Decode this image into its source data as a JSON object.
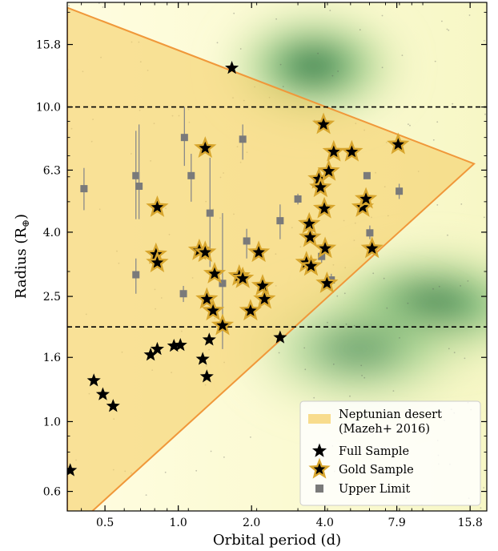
{
  "chart_data": {
    "type": "scatter",
    "xlabel": "Orbital period (d)",
    "ylabel": "Radius (R",
    "ylabel_sub": "⊕",
    "ylabel_close": ")",
    "xscale": "log",
    "yscale": "log",
    "xlim": [
      0.35,
      18.5
    ],
    "ylim": [
      0.52,
      21.5
    ],
    "xticks": [
      {
        "value": 0.5,
        "label": "0.5"
      },
      {
        "value": 1.0,
        "label": "1.0"
      },
      {
        "value": 2.0,
        "label": "2.0"
      },
      {
        "value": 4.0,
        "label": "4.0"
      },
      {
        "value": 7.9,
        "label": "7.9"
      },
      {
        "value": 15.8,
        "label": "15.8"
      }
    ],
    "yticks": [
      {
        "value": 0.6,
        "label": "0.6"
      },
      {
        "value": 1.0,
        "label": "1.0"
      },
      {
        "value": 1.6,
        "label": "1.6"
      },
      {
        "value": 2.5,
        "label": "2.5"
      },
      {
        "value": 4.0,
        "label": "4.0"
      },
      {
        "value": 6.3,
        "label": "6.3"
      },
      {
        "value": 10.0,
        "label": "10.0"
      },
      {
        "value": 15.8,
        "label": "15.8"
      }
    ],
    "hlines": [
      10.0,
      2.0
    ],
    "desert": {
      "name": "Neptunian desert\n(Mazeh+ 2016)",
      "color": "#f5d06a",
      "edge_color": "#f0983a",
      "polygon": [
        [
          0.35,
          20.7
        ],
        [
          16.4,
          6.6
        ],
        [
          0.42,
          0.5
        ],
        [
          0.35,
          0.5
        ]
      ]
    },
    "density_blobs": [
      {
        "x": 3.6,
        "y": 13.5,
        "sx": 0.22,
        "sy": 0.1,
        "strength": 1.0
      },
      {
        "x": 11.0,
        "y": 2.35,
        "sx": 0.28,
        "sy": 0.1,
        "strength": 1.0
      },
      {
        "x": 5.5,
        "y": 1.7,
        "sx": 0.3,
        "sy": 0.12,
        "strength": 0.55
      }
    ],
    "series": [
      {
        "name": "Full Sample",
        "marker": "star",
        "color": "#000000",
        "points": [
          [
            0.36,
            0.7
          ],
          [
            0.45,
            1.35
          ],
          [
            0.49,
            1.22
          ],
          [
            0.54,
            1.12
          ],
          [
            0.77,
            1.63
          ],
          [
            0.82,
            1.7
          ],
          [
            0.96,
            1.74
          ],
          [
            1.02,
            1.75
          ],
          [
            1.26,
            1.58
          ],
          [
            1.31,
            1.39
          ],
          [
            1.34,
            1.82
          ],
          [
            1.66,
            13.3
          ],
          [
            2.62,
            1.85
          ]
        ]
      },
      {
        "name": "Gold Sample",
        "marker": "star-outline",
        "color": "#000000",
        "edge_color": "#d8a62e",
        "points": [
          [
            0.82,
            4.8
          ],
          [
            0.81,
            3.4
          ],
          [
            0.82,
            3.2
          ],
          [
            1.29,
            7.4
          ],
          [
            1.22,
            3.5
          ],
          [
            1.29,
            3.45
          ],
          [
            1.41,
            2.95
          ],
          [
            1.31,
            2.45
          ],
          [
            1.39,
            2.25
          ],
          [
            1.52,
            2.02
          ],
          [
            1.78,
            2.9
          ],
          [
            1.84,
            2.85
          ],
          [
            1.98,
            2.25
          ],
          [
            2.14,
            3.45
          ],
          [
            2.22,
            2.7
          ],
          [
            2.26,
            2.45
          ],
          [
            3.36,
            3.2
          ],
          [
            3.45,
            4.25
          ],
          [
            3.48,
            3.85
          ],
          [
            3.51,
            3.12
          ],
          [
            3.78,
            5.9
          ],
          [
            3.84,
            5.55
          ],
          [
            3.98,
            4.75
          ],
          [
            4.01,
            3.55
          ],
          [
            4.08,
            2.75
          ],
          [
            4.15,
            6.25
          ],
          [
            4.35,
            7.2
          ],
          [
            3.95,
            8.8
          ],
          [
            5.16,
            7.2
          ],
          [
            5.72,
            4.8
          ],
          [
            5.9,
            5.1
          ],
          [
            6.25,
            3.55
          ],
          [
            8.0,
            7.6
          ]
        ]
      },
      {
        "name": "Upper Limit",
        "marker": "square",
        "color": "#7a7a7a",
        "points": [
          [
            0.41,
            5.5,
            4.7,
            6.4
          ],
          [
            0.67,
            2.93,
            2.55,
            3.3
          ],
          [
            0.67,
            6.05,
            4.4,
            8.4
          ],
          [
            0.69,
            5.6,
            4.4,
            8.8
          ],
          [
            1.05,
            2.55,
            2.4,
            2.7
          ],
          [
            1.06,
            8.0,
            6.5,
            10.0
          ],
          [
            1.13,
            6.05,
            5.0,
            7.1
          ],
          [
            1.35,
            4.6,
            3.1,
            6.9
          ],
          [
            1.52,
            2.75,
            1.7,
            4.6
          ],
          [
            1.84,
            7.9,
            6.8,
            8.8
          ],
          [
            1.91,
            3.75,
            3.3,
            4.1
          ],
          [
            2.62,
            4.35,
            3.8,
            4.9
          ],
          [
            3.1,
            5.1,
            4.9,
            5.3
          ],
          [
            3.88,
            3.35,
            3.2,
            3.5
          ],
          [
            4.25,
            2.82,
            2.7,
            2.95
          ],
          [
            5.96,
            6.05,
            5.9,
            6.2
          ],
          [
            6.12,
            3.98,
            3.8,
            4.2
          ],
          [
            8.08,
            5.4,
            5.1,
            5.7
          ]
        ]
      }
    ],
    "legend": {
      "placement": "bottom-right"
    }
  }
}
